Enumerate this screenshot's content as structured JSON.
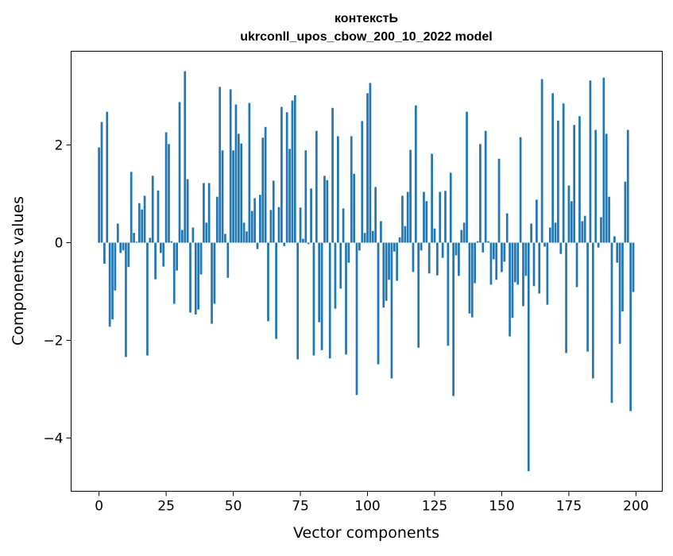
{
  "chart_data": {
    "type": "bar",
    "title": "контекстЬ",
    "subtitle": "ukrconll_upos_cbow_200_10_2022 model",
    "xlabel": "Vector components",
    "ylabel": "Components values",
    "xlim": [
      -10.4,
      209.8
    ],
    "ylim": [
      -5.09,
      3.92
    ],
    "xticks": [
      0,
      25,
      50,
      75,
      100,
      125,
      150,
      175,
      200
    ],
    "xtick_labels": [
      "0",
      "25",
      "50",
      "75",
      "100",
      "125",
      "150",
      "175",
      "200"
    ],
    "yticks": [
      -4,
      -2,
      0,
      2
    ],
    "ytick_labels": [
      "−4",
      "−2",
      "0",
      "2"
    ],
    "grid": false,
    "bar_color": "#1f77b4",
    "values": [
      1.95,
      2.47,
      -0.43,
      2.68,
      -1.72,
      -1.57,
      -0.98,
      0.39,
      -0.21,
      -0.16,
      -2.34,
      -0.5,
      1.45,
      0.2,
      0.02,
      0.81,
      0.68,
      0.96,
      -2.31,
      0.1,
      1.37,
      -0.75,
      1.07,
      -0.21,
      -0.49,
      2.26,
      2.02,
      0.03,
      -1.25,
      -0.57,
      2.88,
      0.26,
      3.51,
      1.3,
      -1.43,
      0.31,
      -1.47,
      -1.37,
      -0.65,
      1.22,
      0.41,
      1.22,
      -1.66,
      -1.25,
      0.94,
      3.19,
      1.89,
      0.18,
      -0.72,
      3.14,
      1.89,
      2.83,
      2.23,
      2.03,
      0.41,
      0.23,
      2.86,
      0.65,
      0.91,
      -0.13,
      0.98,
      2.15,
      2.37,
      -1.61,
      0.67,
      1.27,
      -1.97,
      0.73,
      2.78,
      -0.07,
      2.67,
      1.92,
      2.91,
      3.02,
      -2.39,
      0.72,
      0.08,
      1.89,
      -0.03,
      1.11,
      -2.31,
      2.29,
      -1.63,
      -2.2,
      1.37,
      1.28,
      -2.37,
      2.76,
      -1.35,
      2.18,
      -0.94,
      0.7,
      -2.29,
      -0.41,
      2.18,
      1.41,
      -3.12,
      -0.16,
      2.49,
      0.2,
      3.06,
      3.27,
      0.24,
      1.14,
      -2.49,
      0.44,
      -1.33,
      -1.19,
      -0.76,
      -2.78,
      -0.18,
      -0.78,
      0.11,
      0.96,
      0.34,
      1.04,
      1.9,
      -0.6,
      2.81,
      -2.15,
      -0.16,
      1.04,
      0.85,
      -0.63,
      1.82,
      0.29,
      -0.67,
      1.04,
      -0.31,
      1.06,
      -2.11,
      1.43,
      -3.14,
      -0.26,
      -0.68,
      0.26,
      0.41,
      2.68,
      -1.45,
      -1.53,
      -0.83,
      0.03,
      2.02,
      -0.2,
      2.29,
      0.03,
      -0.86,
      -0.34,
      -0.76,
      1.72,
      -0.6,
      -0.39,
      0.6,
      -1.92,
      -1.54,
      -0.81,
      -0.86,
      2.16,
      -1.3,
      -0.68,
      -4.68,
      0.39,
      -0.89,
      0.88,
      -1.04,
      3.35,
      -0.08,
      -1.27,
      0.31,
      3.06,
      0.41,
      2.5,
      -0.23,
      2.85,
      -2.26,
      1.17,
      0.85,
      2.41,
      -0.91,
      2.59,
      0.44,
      0.55,
      -2.23,
      3.32,
      -2.78,
      2.31,
      -0.1,
      0.52,
      3.38,
      2.23,
      0.94,
      -3.28,
      0.13,
      -0.41,
      -2.07,
      -1.41,
      1.25,
      2.31,
      -3.45,
      -1.01
    ]
  }
}
